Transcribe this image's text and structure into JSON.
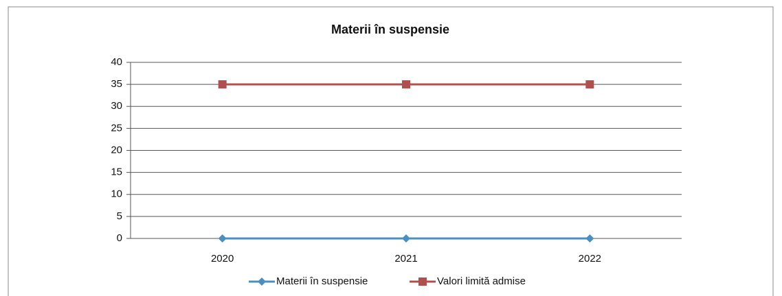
{
  "chart_data": {
    "type": "line",
    "title": "Materii în suspensie",
    "categories": [
      "2020",
      "2021",
      "2022"
    ],
    "series": [
      {
        "name": "Materii în suspensie",
        "color": "#4a8fc0",
        "marker": "diamond",
        "values": [
          0,
          0,
          0
        ]
      },
      {
        "name": "Valori limită admise",
        "color": "#b0504e",
        "marker": "square",
        "values": [
          35,
          35,
          35
        ]
      }
    ],
    "ylim": [
      0,
      40
    ],
    "yticks": [
      0,
      5,
      10,
      15,
      20,
      25,
      30,
      35,
      40
    ],
    "grid": true,
    "legend": "bottom"
  }
}
